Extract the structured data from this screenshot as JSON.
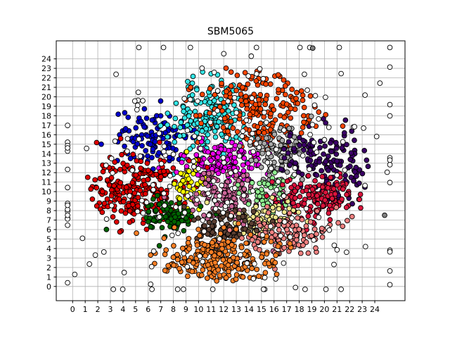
{
  "chart_data": {
    "type": "scatter",
    "title": "SBM5065",
    "xlabel": "",
    "ylabel": "",
    "x_ticks": [
      "0",
      "1",
      "2",
      "3",
      "4",
      "5",
      "6",
      "7",
      "8",
      "9",
      "10",
      "11",
      "12",
      "13",
      "14",
      "15",
      "16",
      "17",
      "18",
      "19",
      "20",
      "21",
      "22",
      "23",
      "24"
    ],
    "y_ticks": [
      "0",
      "1",
      "2",
      "3",
      "4",
      "5",
      "6",
      "7",
      "8",
      "9",
      "10",
      "11",
      "12",
      "13",
      "14",
      "15",
      "16",
      "17",
      "18",
      "19",
      "20",
      "21",
      "22",
      "23",
      "24"
    ],
    "xlim": [
      -1.3,
      26.4
    ],
    "ylim": [
      -1.5,
      25.9
    ],
    "grid": true,
    "legend": "none",
    "marker": "circle, black edge",
    "clusters": [
      {
        "color": "#0000cd",
        "cx": 6.5,
        "cy": 15.5,
        "sx": 1.6,
        "sy": 1.6,
        "n": 110
      },
      {
        "color": "#33e6e6",
        "cx": 11.0,
        "cy": 18.0,
        "sx": 1.5,
        "sy": 2.0,
        "n": 190
      },
      {
        "color": "#ff4500",
        "cx": 15.0,
        "cy": 19.0,
        "sx": 2.2,
        "sy": 2.2,
        "n": 210
      },
      {
        "color": "#ee00ee",
        "cx": 12.0,
        "cy": 13.0,
        "sx": 1.6,
        "sy": 1.1,
        "n": 140
      },
      {
        "color": "#a9a9a9",
        "cx": 16.3,
        "cy": 14.0,
        "sx": 1.0,
        "sy": 1.5,
        "n": 100
      },
      {
        "color": "#3b0066",
        "cx": 20.5,
        "cy": 13.5,
        "sx": 2.3,
        "sy": 1.8,
        "n": 150
      },
      {
        "color": "#e00000",
        "cx": 5.0,
        "cy": 10.0,
        "sx": 2.2,
        "sy": 1.8,
        "n": 260
      },
      {
        "color": "#ffff00",
        "cx": 9.3,
        "cy": 10.5,
        "sx": 0.6,
        "sy": 1.4,
        "n": 45
      },
      {
        "color": "#cc6699",
        "cx": 12.2,
        "cy": 9.5,
        "sx": 1.5,
        "sy": 1.3,
        "n": 130
      },
      {
        "color": "#90ee90",
        "cx": 15.5,
        "cy": 10.0,
        "sx": 0.9,
        "sy": 0.9,
        "n": 55
      },
      {
        "color": "#dc143c",
        "cx": 19.5,
        "cy": 9.3,
        "sx": 1.8,
        "sy": 1.2,
        "n": 150
      },
      {
        "color": "#006400",
        "cx": 7.5,
        "cy": 7.5,
        "sx": 1.1,
        "sy": 0.9,
        "n": 80
      },
      {
        "color": "#f0e68c",
        "cx": 15.5,
        "cy": 7.0,
        "sx": 1.5,
        "sy": 0.9,
        "n": 75
      },
      {
        "color": "#5c4033",
        "cx": 12.2,
        "cy": 6.2,
        "sx": 1.4,
        "sy": 1.0,
        "n": 95
      },
      {
        "color": "#f08080",
        "cx": 17.0,
        "cy": 5.5,
        "sx": 1.8,
        "sy": 1.3,
        "n": 120
      },
      {
        "color": "#ff7f24",
        "cx": 11.5,
        "cy": 2.8,
        "sx": 2.4,
        "sy": 1.4,
        "n": 240
      },
      {
        "color": "#ffffff",
        "cx": 12.0,
        "cy": 11.5,
        "sx": 7.5,
        "sy": 7.0,
        "n": 230
      },
      {
        "color": "#808080",
        "cx": 19.0,
        "cy": 25.0,
        "sx": 0.1,
        "sy": 0.1,
        "n": 1
      },
      {
        "color": "#808080",
        "cx": 24.8,
        "cy": 7.3,
        "sx": 0.1,
        "sy": 0.1,
        "n": 1
      }
    ]
  }
}
